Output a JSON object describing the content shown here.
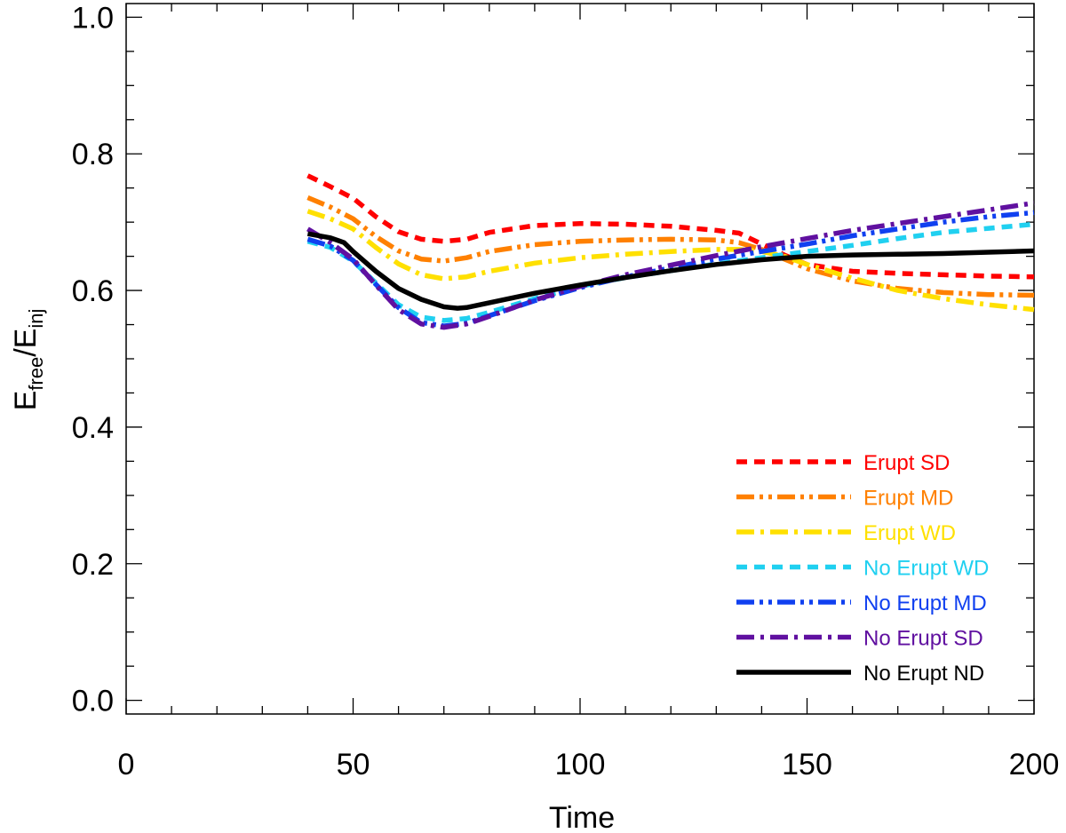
{
  "chart_data": {
    "type": "line",
    "title": "",
    "xlabel": "Time",
    "ylabel": {
      "base": "E",
      "num_sub": "free",
      "sep": "/",
      "den_base": "E",
      "den_sub": "inj"
    },
    "xlim": [
      0,
      200
    ],
    "ylim": [
      -0.02,
      1.02
    ],
    "xticks": [
      0,
      50,
      100,
      150,
      200
    ],
    "xtick_labels": [
      "0",
      "50",
      "100",
      "150",
      "200"
    ],
    "yticks": [
      0.0,
      0.2,
      0.4,
      0.6,
      0.8,
      1.0
    ],
    "ytick_labels": [
      "0.0",
      "0.2",
      "0.4",
      "0.6",
      "0.8",
      "1.0"
    ],
    "legend_position": "bottom-right",
    "series": [
      {
        "name": "Erupt SD",
        "color": "#ff0000",
        "style": "dashed",
        "x": [
          40,
          45,
          50,
          55,
          60,
          65,
          70,
          75,
          80,
          90,
          100,
          110,
          120,
          130,
          135,
          140,
          145,
          150,
          160,
          170,
          180,
          190,
          200
        ],
        "y": [
          0.768,
          0.752,
          0.735,
          0.708,
          0.686,
          0.675,
          0.672,
          0.675,
          0.685,
          0.695,
          0.698,
          0.697,
          0.694,
          0.688,
          0.684,
          0.668,
          0.652,
          0.638,
          0.628,
          0.625,
          0.623,
          0.621,
          0.62
        ]
      },
      {
        "name": "Erupt MD",
        "color": "#ff8000",
        "style": "dash-dot-dot",
        "x": [
          40,
          45,
          50,
          55,
          60,
          65,
          70,
          75,
          80,
          90,
          100,
          110,
          120,
          130,
          135,
          140,
          145,
          150,
          160,
          170,
          180,
          190,
          200
        ],
        "y": [
          0.736,
          0.722,
          0.705,
          0.679,
          0.658,
          0.646,
          0.643,
          0.648,
          0.657,
          0.667,
          0.672,
          0.674,
          0.675,
          0.674,
          0.67,
          0.66,
          0.646,
          0.632,
          0.614,
          0.603,
          0.597,
          0.594,
          0.593
        ]
      },
      {
        "name": "Erupt WD",
        "color": "#ffe000",
        "style": "dash-dot",
        "x": [
          40,
          45,
          50,
          55,
          60,
          65,
          70,
          75,
          80,
          90,
          100,
          110,
          120,
          130,
          135,
          140,
          145,
          150,
          160,
          170,
          180,
          190,
          200
        ],
        "y": [
          0.716,
          0.705,
          0.69,
          0.663,
          0.639,
          0.623,
          0.617,
          0.62,
          0.628,
          0.64,
          0.648,
          0.653,
          0.657,
          0.66,
          0.66,
          0.657,
          0.65,
          0.638,
          0.618,
          0.6,
          0.588,
          0.579,
          0.572
        ]
      },
      {
        "name": "No Erupt WD",
        "color": "#20d0f0",
        "style": "dashed",
        "x": [
          40,
          45,
          50,
          55,
          60,
          65,
          70,
          75,
          80,
          90,
          100,
          110,
          120,
          130,
          140,
          150,
          160,
          170,
          180,
          190,
          200
        ],
        "y": [
          0.672,
          0.663,
          0.643,
          0.611,
          0.579,
          0.561,
          0.556,
          0.559,
          0.568,
          0.588,
          0.606,
          0.619,
          0.629,
          0.639,
          0.648,
          0.657,
          0.666,
          0.676,
          0.685,
          0.691,
          0.697
        ]
      },
      {
        "name": "No Erupt MD",
        "color": "#1040f0",
        "style": "dash-dot-dot",
        "x": [
          40,
          45,
          50,
          55,
          60,
          65,
          70,
          75,
          80,
          90,
          100,
          110,
          120,
          130,
          140,
          150,
          160,
          170,
          180,
          190,
          200
        ],
        "y": [
          0.675,
          0.665,
          0.644,
          0.609,
          0.575,
          0.553,
          0.548,
          0.552,
          0.563,
          0.585,
          0.604,
          0.62,
          0.633,
          0.646,
          0.657,
          0.668,
          0.68,
          0.69,
          0.7,
          0.708,
          0.714
        ]
      },
      {
        "name": "No Erupt SD",
        "color": "#6010a0",
        "style": "dash-dot",
        "x": [
          40,
          45,
          50,
          55,
          60,
          65,
          70,
          75,
          80,
          90,
          100,
          110,
          120,
          130,
          140,
          150,
          160,
          170,
          180,
          190,
          200
        ],
        "y": [
          0.69,
          0.67,
          0.646,
          0.608,
          0.572,
          0.551,
          0.546,
          0.551,
          0.562,
          0.586,
          0.606,
          0.623,
          0.637,
          0.651,
          0.664,
          0.676,
          0.688,
          0.698,
          0.708,
          0.718,
          0.728
        ]
      },
      {
        "name": "No Erupt ND",
        "color": "#000000",
        "style": "solid",
        "x": [
          40,
          45,
          48,
          50,
          55,
          60,
          65,
          70,
          73,
          75,
          80,
          90,
          100,
          110,
          120,
          130,
          140,
          150,
          160,
          170,
          180,
          190,
          200
        ],
        "y": [
          0.683,
          0.677,
          0.67,
          0.657,
          0.628,
          0.603,
          0.587,
          0.576,
          0.574,
          0.575,
          0.582,
          0.596,
          0.608,
          0.619,
          0.629,
          0.638,
          0.645,
          0.65,
          0.652,
          0.653,
          0.654,
          0.656,
          0.658
        ]
      }
    ]
  }
}
